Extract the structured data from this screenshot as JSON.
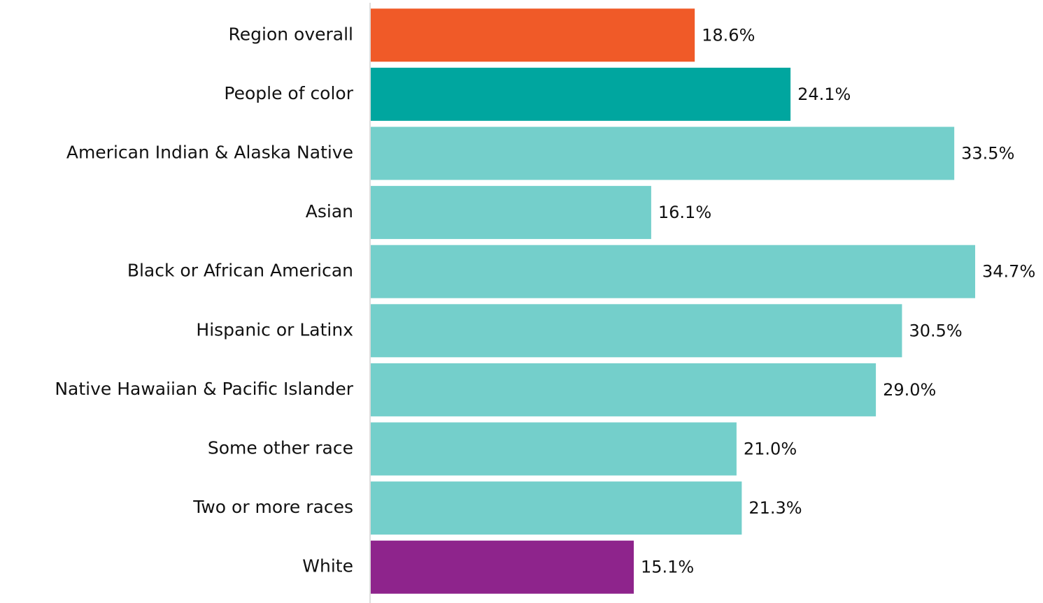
{
  "chart_data": {
    "type": "bar",
    "orientation": "horizontal",
    "categories": [
      "Region overall",
      "People of color",
      "American Indian & Alaska Native",
      "Asian",
      "Black or African American",
      "Hispanic or Latinx",
      "Native Hawaiian & Pacific Islander",
      "Some other race",
      "Two or more races",
      "White"
    ],
    "values": [
      18.6,
      24.1,
      33.5,
      16.1,
      34.7,
      30.5,
      29.0,
      21.0,
      21.3,
      15.1
    ],
    "value_labels": [
      "18.6%",
      "24.1%",
      "33.5%",
      "16.1%",
      "34.7%",
      "30.5%",
      "29.0%",
      "21.0%",
      "21.3%",
      "15.1%"
    ],
    "colors": [
      "#f05a28",
      "#00a69f",
      "#74cfcb",
      "#74cfcb",
      "#74cfcb",
      "#74cfcb",
      "#74cfcb",
      "#74cfcb",
      "#74cfcb",
      "#8e248c"
    ],
    "xlim": [
      0,
      38
    ]
  }
}
